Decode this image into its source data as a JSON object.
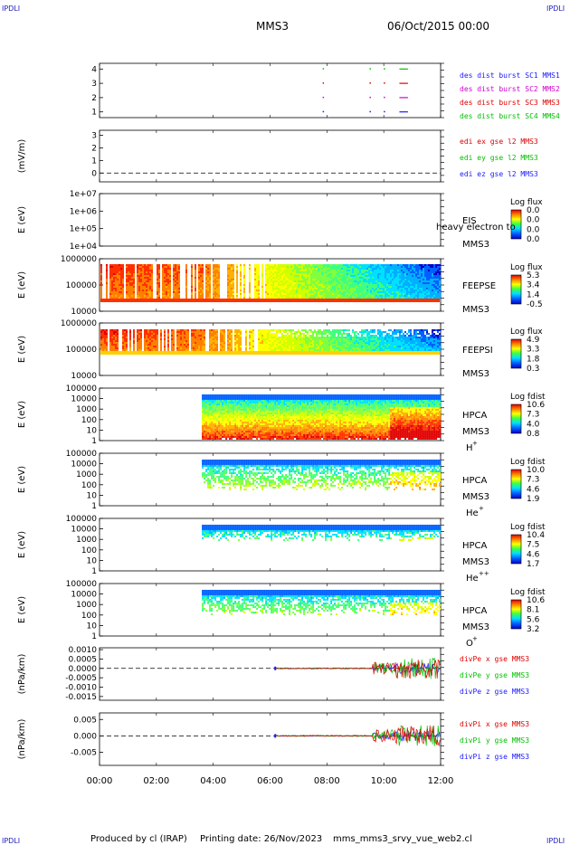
{
  "header": {
    "corner_tl": "IPDLI",
    "corner_tr": "IPDLI",
    "corner_bl": "IPDLI",
    "corner_br": "IPDLI",
    "spacecraft": "MMS3",
    "date": "06/Oct/2015 00:00"
  },
  "footer": {
    "produced_by": "Produced by cl (IRAP)",
    "printing_date": "Printing date: 26/Nov/2023",
    "file": "mms_mms3_srvy_vue_web2.cl"
  },
  "colors": {
    "blue": "#1a1aff",
    "red": "#e00000",
    "magenta": "#d000d0",
    "green": "#00c000"
  },
  "chart_data": {
    "type": "heatmap",
    "time_axis": {
      "ticks": [
        "00:00",
        "02:00",
        "04:00",
        "06:00",
        "08:00",
        "10:00",
        "12:00"
      ],
      "range_hours": [
        0,
        12
      ]
    },
    "panels": [
      {
        "id": "burst",
        "type": "scatter",
        "ylim": [
          0.6,
          4.4
        ],
        "yticks": [
          "1",
          "2",
          "3",
          "4"
        ],
        "legend": [
          {
            "text": "des dist burst SC1 MMS1",
            "color": "#1a1aff"
          },
          {
            "text": "des dist burst SC2 MMS2",
            "color": "#d000d0"
          },
          {
            "text": "des dist burst SC3 MMS3",
            "color": "#e00000"
          },
          {
            "text": "des dist burst SC4 MMS4",
            "color": "#00c000"
          }
        ],
        "marks": [
          {
            "sc": 4,
            "t": [
              7.85
            ],
            "color": "#00c000"
          },
          {
            "sc": 4,
            "t": [
              9.5,
              10.0
            ],
            "color": "#00c000"
          },
          {
            "sc": 3,
            "t": [
              7.85,
              9.5,
              10.0
            ],
            "color": "#e00000"
          },
          {
            "sc": 2,
            "t": [
              7.85,
              9.5,
              10.0
            ],
            "color": "#d000d0"
          },
          {
            "sc": 1,
            "t": [
              7.85,
              9.5,
              10.0
            ],
            "color": "#1a1aff"
          }
        ],
        "bars": [
          {
            "sc": 4,
            "t0": 10.55,
            "t1": 10.85,
            "color": "#00c000"
          },
          {
            "sc": 3,
            "t0": 10.55,
            "t1": 10.85,
            "color": "#e00000"
          },
          {
            "sc": 2,
            "t0": 10.55,
            "t1": 10.85,
            "color": "#d000d0"
          },
          {
            "sc": 1,
            "t0": 10.55,
            "t1": 10.85,
            "color": "#1a1aff"
          }
        ]
      },
      {
        "id": "edi",
        "type": "line",
        "ylabel": "(mV/m)",
        "ylim": [
          -0.7,
          3.4
        ],
        "yticks": [
          "3",
          "2",
          "1",
          "0"
        ],
        "legend": [
          {
            "text": "edi ex gse l2 MMS3",
            "color": "#e00000"
          },
          {
            "text": "edi ey gse l2 MMS3",
            "color": "#00c000"
          },
          {
            "text": "edi ez gse l2 MMS3",
            "color": "#1a1aff"
          }
        ]
      },
      {
        "id": "eis",
        "type": "heatmap",
        "ylabel": "E (eV)",
        "yticks": [
          "1e+07",
          "1e+06",
          "1e+05",
          "1e+04"
        ],
        "instrument": "EIS",
        "mission": "MMS3",
        "overlay": "heavy electron to",
        "colorbar": {
          "title": "Log flux",
          "ticks": [
            "0.0",
            "0.0",
            "0.0",
            "0.0"
          ]
        }
      },
      {
        "id": "feepse",
        "type": "heatmap",
        "ylabel": "E (eV)",
        "yticks": [
          "1000000",
          "100000",
          "10000"
        ],
        "instrument": "FEEPSE",
        "mission": "MMS3",
        "colorbar": {
          "title": "Log flux",
          "ticks": [
            "5.3",
            "3.4",
            "1.4",
            "-0.5"
          ]
        }
      },
      {
        "id": "feepsi",
        "type": "heatmap",
        "ylabel": "E (eV)",
        "yticks": [
          "1000000",
          "100000",
          "10000"
        ],
        "instrument": "FEEPSI",
        "mission": "MMS3",
        "colorbar": {
          "title": "Log flux",
          "ticks": [
            "4.9",
            "3.3",
            "1.8",
            "0.3"
          ]
        }
      },
      {
        "id": "hpca_h",
        "type": "heatmap",
        "ylabel": "E (eV)",
        "yticks": [
          "100000",
          "10000",
          "1000",
          "100",
          "10",
          "1"
        ],
        "instrument": "HPCA",
        "mission": "MMS3",
        "species": "H",
        "charge": "+",
        "colorbar": {
          "title": "Log fdist",
          "ticks": [
            "10.6",
            "7.3",
            "4.0",
            "0.8"
          ]
        }
      },
      {
        "id": "hpca_he",
        "type": "heatmap",
        "ylabel": "E (eV)",
        "yticks": [
          "100000",
          "10000",
          "1000",
          "100",
          "10",
          "1"
        ],
        "instrument": "HPCA",
        "mission": "MMS3",
        "species": "He",
        "charge": "+",
        "colorbar": {
          "title": "Log fdist",
          "ticks": [
            "10.0",
            "7.3",
            "4.6",
            "1.9"
          ]
        }
      },
      {
        "id": "hpca_hepp",
        "type": "heatmap",
        "ylabel": "E (eV)",
        "yticks": [
          "100000",
          "10000",
          "1000",
          "100",
          "10",
          "1"
        ],
        "instrument": "HPCA",
        "mission": "MMS3",
        "species": "He",
        "charge": "++",
        "colorbar": {
          "title": "Log fdist",
          "ticks": [
            "10.4",
            "7.5",
            "4.6",
            "1.7"
          ]
        }
      },
      {
        "id": "hpca_o",
        "type": "heatmap",
        "ylabel": "E (eV)",
        "yticks": [
          "100000",
          "10000",
          "1000",
          "100",
          "10",
          "1"
        ],
        "instrument": "HPCA",
        "mission": "MMS3",
        "species": "O",
        "charge": "+",
        "colorbar": {
          "title": "Log fdist",
          "ticks": [
            "10.6",
            "8.1",
            "5.6",
            "3.2"
          ]
        }
      },
      {
        "id": "divpe",
        "type": "line",
        "ylabel": "(nPa/km)",
        "ylim": [
          -0.0017,
          0.0011
        ],
        "yticks": [
          "0.0010",
          "0.0005",
          "0.0000",
          "-0.0005",
          "-0.0010",
          "-0.0015"
        ],
        "legend": [
          {
            "text": "divPe x gse MMS3",
            "color": "#e00000"
          },
          {
            "text": "divPe y gse MMS3",
            "color": "#00c000"
          },
          {
            "text": "divPe z gse MMS3",
            "color": "#1a1aff"
          }
        ]
      },
      {
        "id": "divpi",
        "type": "line",
        "ylabel": "(nPa/km)",
        "ylim": [
          -0.009,
          0.007
        ],
        "yticks": [
          "0.005",
          "0.000",
          "-0.005"
        ],
        "legend": [
          {
            "text": "divPi x gse MMS3",
            "color": "#e00000"
          },
          {
            "text": "divPi y gse MMS3",
            "color": "#00c000"
          },
          {
            "text": "divPi z gse MMS3",
            "color": "#1a1aff"
          }
        ]
      }
    ]
  }
}
